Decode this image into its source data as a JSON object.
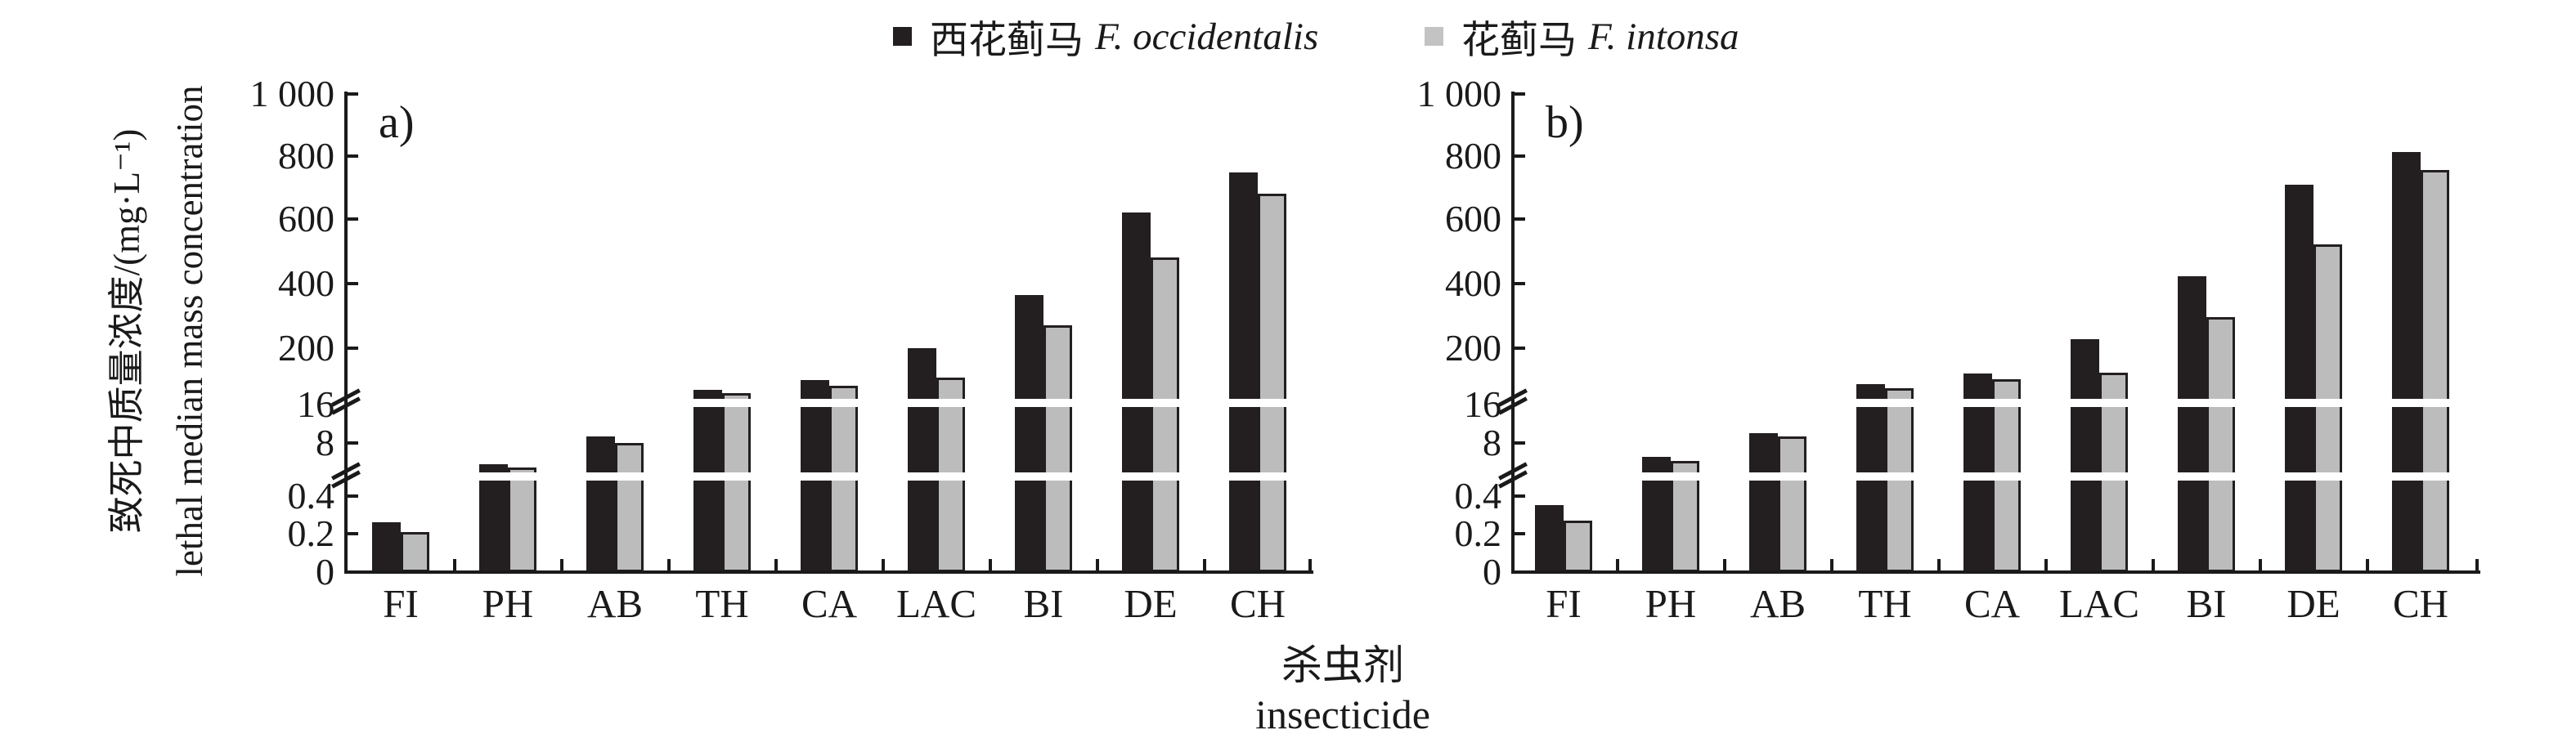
{
  "legend": [
    {
      "name_cn": "西花蓟马",
      "name_latin": "F. occidentalis",
      "color": "#231f20"
    },
    {
      "name_cn": "花蓟马",
      "name_latin": "F. intonsa",
      "color": "#c3c3c3"
    }
  ],
  "y_axis": {
    "title_cn": "致死中质量浓度/(mg·L⁻¹)",
    "title_en": "lethal median mass concentration",
    "ticks": [
      {
        "label": "1 000",
        "value": 1000,
        "tick": true,
        "break": false
      },
      {
        "label": "800",
        "value": 800,
        "tick": true,
        "break": false
      },
      {
        "label": "600",
        "value": 600,
        "tick": true,
        "break": false
      },
      {
        "label": "400",
        "value": 400,
        "tick": true,
        "break": false
      },
      {
        "label": "200",
        "value": 200,
        "tick": true,
        "break": false
      },
      {
        "label": "16",
        "value": 16,
        "tick": false,
        "break": true
      },
      {
        "label": "8",
        "value": 8,
        "tick": true,
        "break": false
      },
      {
        "label": "0.4",
        "value": 0.4,
        "tick": true,
        "break": false
      },
      {
        "label": "0.2",
        "value": 0.2,
        "tick": true,
        "break": false
      },
      {
        "label": "0",
        "value": 0,
        "tick": false,
        "break": false
      }
    ],
    "lower_break_between": [
      "0.4",
      "8"
    ]
  },
  "x_axis": {
    "title_cn": "杀虫剂",
    "title_en": "insecticide",
    "categories": [
      "FI",
      "PH",
      "AB",
      "TH",
      "CA",
      "LAC",
      "BI",
      "DE",
      "CH"
    ]
  },
  "chart_data": [
    {
      "panel": "a)",
      "type": "bar",
      "categories": [
        "FI",
        "PH",
        "AB",
        "TH",
        "CA",
        "LAC",
        "BI",
        "DE",
        "CH"
      ],
      "series": [
        {
          "name": "西花蓟马 F. occidentalis",
          "color": "#231f20",
          "values": [
            0.26,
            5.0,
            9.4,
            63,
            96,
            200,
            365,
            620,
            748
          ]
        },
        {
          "name": "花蓟马 F. intonsa",
          "color": "#bcbcbc",
          "values": [
            0.21,
            4.5,
            8.0,
            53,
            77,
            104,
            270,
            480,
            680
          ]
        }
      ],
      "ylabel": "致死中质量浓度/(mg·L⁻¹) lethal median mass concentration",
      "xlabel": "杀虫剂 insecticide",
      "ylim_segments": [
        [
          0,
          0.4
        ],
        [
          0.4,
          16
        ],
        [
          16,
          1000
        ]
      ],
      "axis_breaks": 2,
      "grid": false,
      "legend_position": "top-center"
    },
    {
      "panel": "b)",
      "type": "bar",
      "categories": [
        "FI",
        "PH",
        "AB",
        "TH",
        "CA",
        "LAC",
        "BI",
        "DE",
        "CH"
      ],
      "series": [
        {
          "name": "西花蓟马 F. occidentalis",
          "color": "#231f20",
          "values": [
            0.35,
            6.0,
            10.0,
            82,
            118,
            228,
            424,
            710,
            812
          ]
        },
        {
          "name": "花蓟马 F. intonsa",
          "color": "#bcbcbc",
          "values": [
            0.27,
            5.4,
            9.4,
            70,
            98,
            120,
            295,
            522,
            755
          ]
        }
      ],
      "ylabel": "致死中质量浓度/(mg·L⁻¹) lethal median mass concentration",
      "xlabel": "杀虫剂 insecticide",
      "ylim_segments": [
        [
          0,
          0.4
        ],
        [
          0.4,
          16
        ],
        [
          16,
          1000
        ]
      ],
      "axis_breaks": 2,
      "grid": false,
      "legend_position": "top-center"
    }
  ]
}
